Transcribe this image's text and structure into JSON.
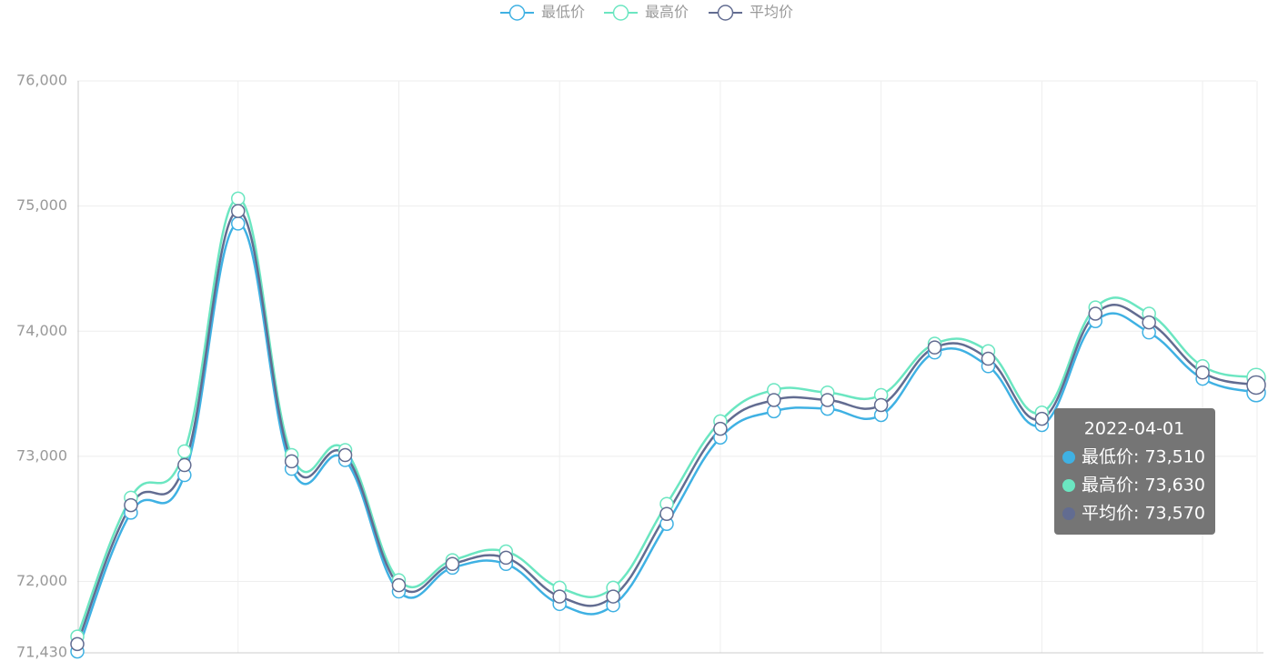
{
  "chart_data": {
    "type": "line",
    "categories": [
      null,
      null,
      null,
      null,
      null,
      null,
      null,
      null,
      null,
      null,
      null,
      null,
      null,
      null,
      null,
      null,
      null,
      null,
      null,
      null,
      null,
      null,
      "2022-04-01"
    ],
    "series": [
      {
        "name": "最低价",
        "color": "#3fb1e3",
        "values": [
          71440,
          72550,
          72850,
          74860,
          72900,
          72970,
          71920,
          72110,
          72140,
          71820,
          71810,
          72460,
          73150,
          73360,
          73380,
          73330,
          73830,
          73720,
          73250,
          74080,
          73990,
          73620,
          73510
        ]
      },
      {
        "name": "最高价",
        "color": "#6be6c1",
        "values": [
          71560,
          72670,
          73040,
          75060,
          73010,
          73050,
          72010,
          72170,
          72240,
          71950,
          71950,
          72620,
          73280,
          73530,
          73510,
          73490,
          73900,
          73840,
          73350,
          74190,
          74140,
          73720,
          73630
        ]
      },
      {
        "name": "平均价",
        "color": "#626c91",
        "values": [
          71500,
          72610,
          72930,
          74960,
          72960,
          73010,
          71970,
          72140,
          72190,
          71880,
          71880,
          72540,
          73220,
          73450,
          73450,
          73410,
          73870,
          73780,
          73300,
          74140,
          74070,
          73670,
          73570
        ]
      }
    ],
    "ylim": [
      71430,
      76000
    ],
    "yticks": [
      {
        "value": 71430,
        "label": "71,430"
      },
      {
        "value": 72000,
        "label": "72,000"
      },
      {
        "value": 73000,
        "label": "73,000"
      },
      {
        "value": 74000,
        "label": "74,000"
      },
      {
        "value": 75000,
        "label": "75,000"
      },
      {
        "value": 76000,
        "label": "76,000"
      }
    ],
    "grid": true,
    "tooltip": {
      "rows": [
        "最低价: 73,510",
        "最高价: 73,630",
        "平均价: 73,570"
      ]
    }
  }
}
